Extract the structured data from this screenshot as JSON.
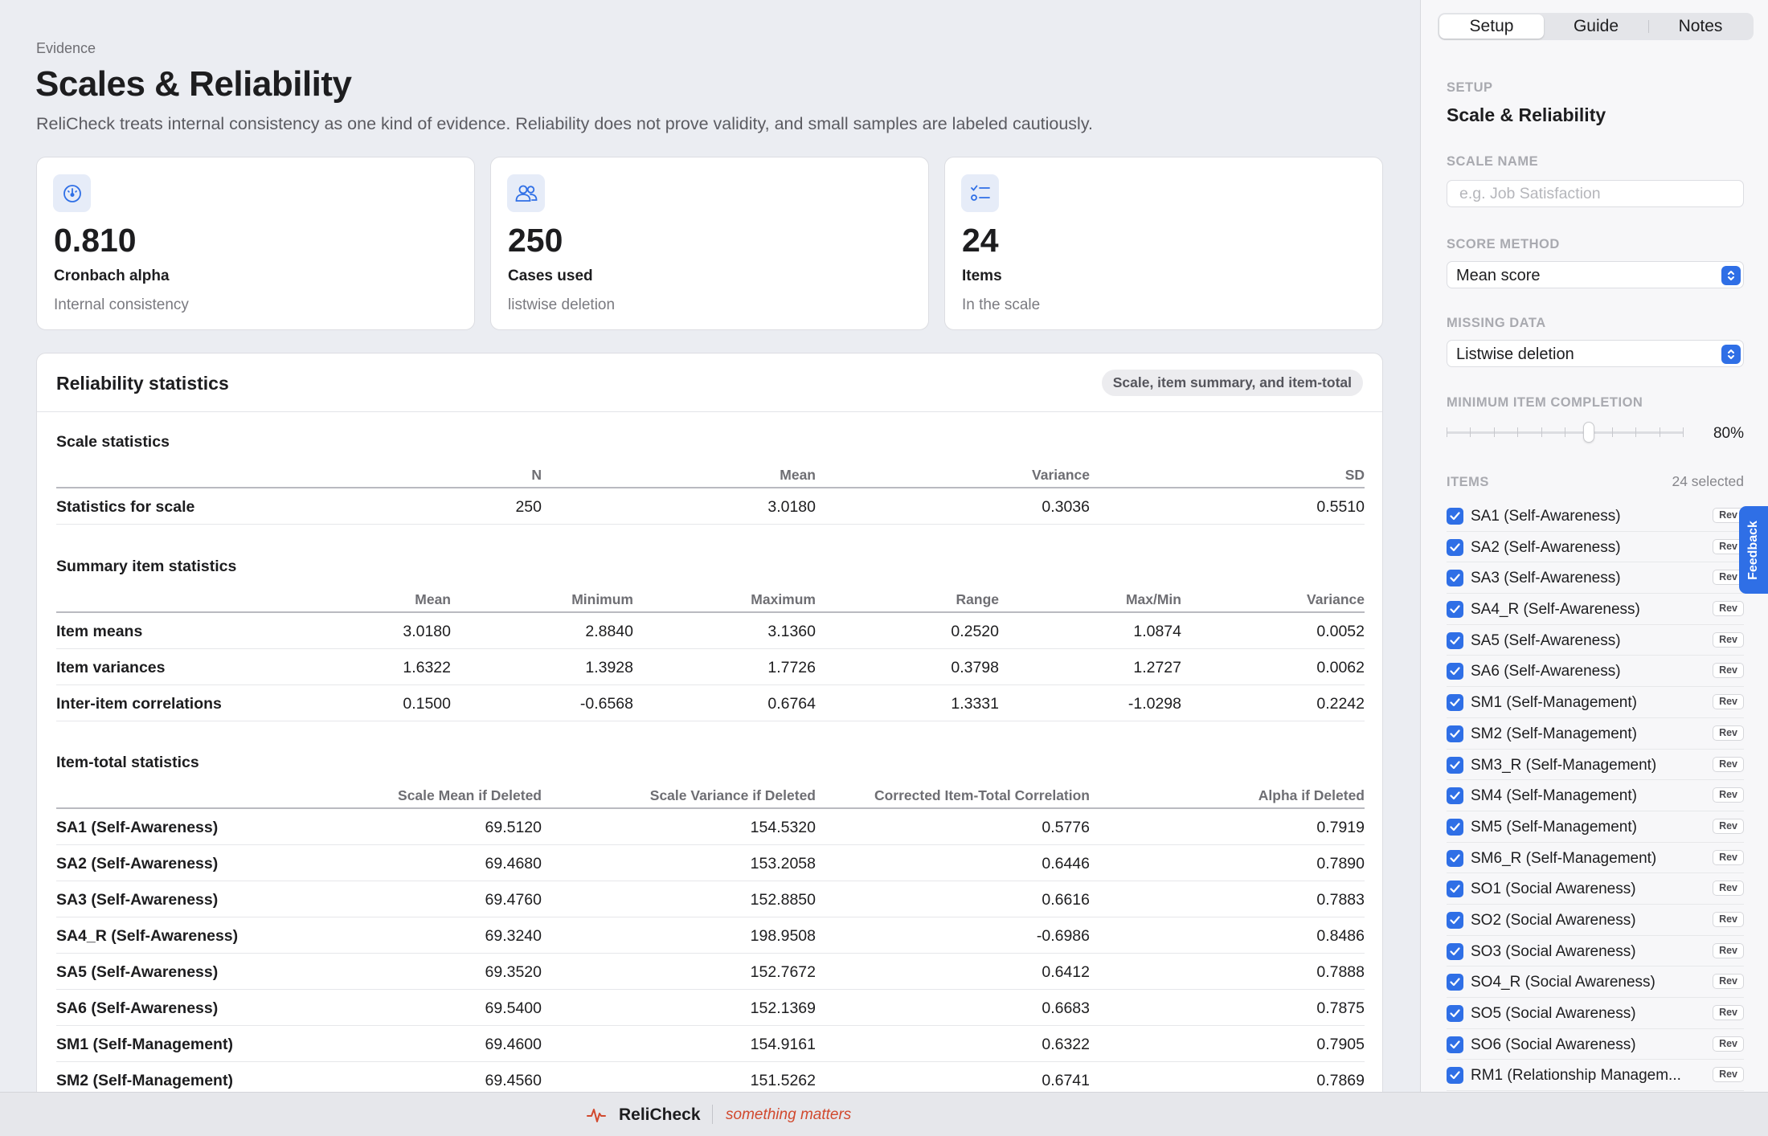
{
  "header": {
    "eyebrow": "Evidence",
    "title": "Scales & Reliability",
    "subtitle": "ReliCheck treats internal consistency as one kind of evidence. Reliability does not prove validity, and small samples are labeled cautiously."
  },
  "stats": [
    {
      "icon": "gauge-icon",
      "value": "0.810",
      "label": "Cronbach alpha",
      "sub": "Internal consistency"
    },
    {
      "icon": "users-icon",
      "value": "250",
      "label": "Cases used",
      "sub": "listwise deletion"
    },
    {
      "icon": "checklist-icon",
      "value": "24",
      "label": "Items",
      "sub": "In the scale"
    }
  ],
  "panel": {
    "title": "Reliability statistics",
    "badge": "Scale, item summary, and item-total",
    "scale": {
      "title": "Scale statistics",
      "columns": [
        "N",
        "Mean",
        "Variance",
        "SD"
      ],
      "rows": [
        {
          "label": "Statistics for scale",
          "cells": [
            "250",
            "3.0180",
            "0.3036",
            "0.5510"
          ]
        }
      ]
    },
    "summary": {
      "title": "Summary item statistics",
      "columns": [
        "Mean",
        "Minimum",
        "Maximum",
        "Range",
        "Max/Min",
        "Variance"
      ],
      "rows": [
        {
          "label": "Item means",
          "cells": [
            "3.0180",
            "2.8840",
            "3.1360",
            "0.2520",
            "1.0874",
            "0.0052"
          ]
        },
        {
          "label": "Item variances",
          "cells": [
            "1.6322",
            "1.3928",
            "1.7726",
            "0.3798",
            "1.2727",
            "0.0062"
          ]
        },
        {
          "label": "Inter-item correlations",
          "cells": [
            "0.1500",
            "-0.6568",
            "0.6764",
            "1.3331",
            "-1.0298",
            "0.2242"
          ]
        }
      ]
    },
    "itemtotal": {
      "title": "Item-total statistics",
      "columns": [
        "Scale Mean if Deleted",
        "Scale Variance if Deleted",
        "Corrected Item-Total Correlation",
        "Alpha if Deleted"
      ],
      "rows": [
        {
          "label": "SA1 (Self-Awareness)",
          "cells": [
            "69.5120",
            "154.5320",
            "0.5776",
            "0.7919"
          ]
        },
        {
          "label": "SA2 (Self-Awareness)",
          "cells": [
            "69.4680",
            "153.2058",
            "0.6446",
            "0.7890"
          ]
        },
        {
          "label": "SA3 (Self-Awareness)",
          "cells": [
            "69.4760",
            "152.8850",
            "0.6616",
            "0.7883"
          ]
        },
        {
          "label": "SA4_R (Self-Awareness)",
          "cells": [
            "69.3240",
            "198.9508",
            "-0.6986",
            "0.8486"
          ]
        },
        {
          "label": "SA5 (Self-Awareness)",
          "cells": [
            "69.3520",
            "152.7672",
            "0.6412",
            "0.7888"
          ]
        },
        {
          "label": "SA6 (Self-Awareness)",
          "cells": [
            "69.5400",
            "152.1369",
            "0.6683",
            "0.7875"
          ]
        },
        {
          "label": "SM1 (Self-Management)",
          "cells": [
            "69.4600",
            "154.9161",
            "0.6322",
            "0.7905"
          ]
        },
        {
          "label": "SM2 (Self-Management)",
          "cells": [
            "69.4560",
            "151.5262",
            "0.6741",
            "0.7869"
          ]
        }
      ]
    }
  },
  "sidebar": {
    "tabs": [
      "Setup",
      "Guide",
      "Notes"
    ],
    "eyebrow": "SETUP",
    "heading": "Scale & Reliability",
    "scale_name_label": "SCALE NAME",
    "scale_name_placeholder": "e.g. Job Satisfaction",
    "scale_name_value": "",
    "score_method_label": "SCORE METHOD",
    "score_method_value": "Mean score",
    "missing_label": "MISSING DATA",
    "missing_value": "Listwise deletion",
    "min_completion_label": "MINIMUM ITEM COMPLETION",
    "min_completion_value": "80%",
    "min_completion_fraction": 0.6,
    "items_label": "ITEMS",
    "items_count": "24 selected",
    "rev_label": "Rev",
    "items": [
      "SA1 (Self-Awareness)",
      "SA2 (Self-Awareness)",
      "SA3 (Self-Awareness)",
      "SA4_R (Self-Awareness)",
      "SA5 (Self-Awareness)",
      "SA6 (Self-Awareness)",
      "SM1 (Self-Management)",
      "SM2 (Self-Management)",
      "SM3_R (Self-Management)",
      "SM4 (Self-Management)",
      "SM5 (Self-Management)",
      "SM6_R (Self-Management)",
      "SO1 (Social Awareness)",
      "SO2 (Social Awareness)",
      "SO3 (Social Awareness)",
      "SO4_R (Social Awareness)",
      "SO5 (Social Awareness)",
      "SO6 (Social Awareness)",
      "RM1 (Relationship Managem..."
    ],
    "feedback": "Feedback"
  },
  "footer": {
    "brand": "ReliCheck",
    "tagline": "something matters"
  },
  "colors": {
    "accent": "#2f6fe6",
    "brand_red": "#d1492e"
  }
}
